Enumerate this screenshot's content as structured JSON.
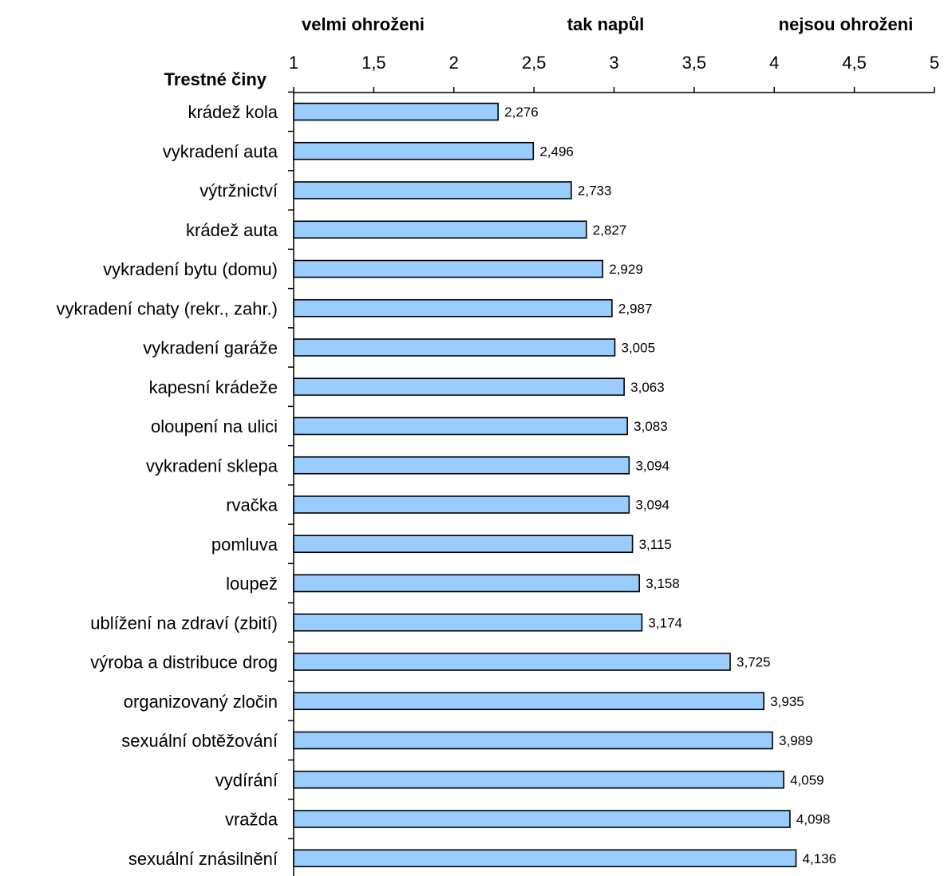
{
  "chart_data": {
    "type": "bar",
    "orientation": "horizontal",
    "ylabel": "Trestné činy",
    "scale_labels": [
      "velmi ohroženi",
      "tak napůl",
      "nejsou ohroženi"
    ],
    "tick_labels": [
      "1",
      "1,5",
      "2",
      "2,5",
      "3",
      "3,5",
      "4",
      "4,5",
      "5"
    ],
    "xlim": [
      1,
      5
    ],
    "x_axis_position": "top",
    "grid": false,
    "legend": "none",
    "bar_color": "#99ccff",
    "categories": [
      "krádež kola",
      "vykradení auta",
      "výtržnictví",
      "krádež auta",
      "vykradení bytu (domu)",
      "vykradení chaty (rekr., zahr.)",
      "vykradení garáže",
      "kapesní krádeže",
      "oloupení na ulici",
      "vykradení sklepa",
      "rvačka",
      "pomluva",
      "loupež",
      "ublížení na zdraví (zbití)",
      "výroba a distribuce drog",
      "organizovaný zločin",
      "sexuální obtěžování",
      "vydírání",
      "vražda",
      "sexuální znásilnění"
    ],
    "values": [
      2.276,
      2.496,
      2.733,
      2.827,
      2.929,
      2.987,
      3.005,
      3.063,
      3.083,
      3.094,
      3.094,
      3.115,
      3.158,
      3.174,
      3.725,
      3.935,
      3.989,
      4.059,
      4.098,
      4.136
    ],
    "value_labels": [
      "2,276",
      "2,496",
      "2,733",
      "2,827",
      "2,929",
      "2,987",
      "3,005",
      "3,063",
      "3,083",
      "3,094",
      "3,094",
      "3,115",
      "3,158",
      "3,174",
      "3,725",
      "3,935",
      "3,989",
      "4,059",
      "4,098",
      "4,136"
    ]
  }
}
